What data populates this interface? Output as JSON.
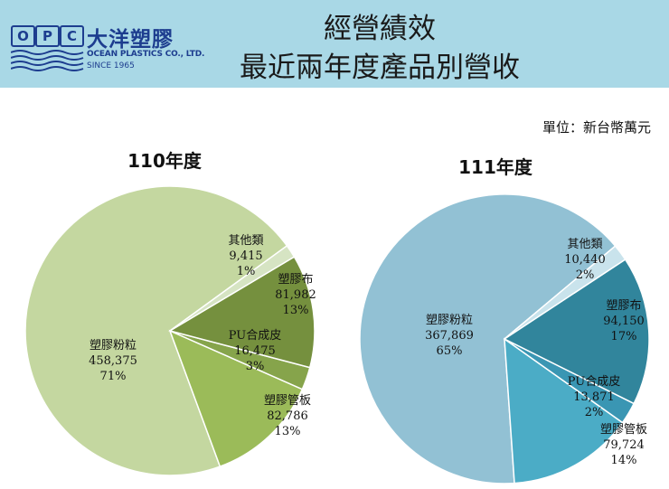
{
  "header": {
    "title_line1": "經營績效",
    "title_line2": "最近兩年度產品別營收",
    "logo": {
      "letters": [
        "O",
        "P",
        "C"
      ],
      "name_cn": "大洋塑膠",
      "name_en": "OCEAN PLASTICS CO., LTD.",
      "since": "SINCE 1965"
    }
  },
  "unit_label": "單位：新台幣萬元",
  "colors": {
    "header_bg": "#a9d8e6",
    "logo_blue": "#1d3d8f"
  },
  "chart_data": [
    {
      "type": "pie",
      "title": "110年度",
      "slices": [
        {
          "name": "其他類",
          "value_label": "9,415",
          "pct_label": "1%",
          "value": 9415,
          "color": "#d6e4c3"
        },
        {
          "name": "塑膠布",
          "value_label": "81,982",
          "pct_label": "13%",
          "value": 81982,
          "color": "#75903e"
        },
        {
          "name": "PU合成皮",
          "value_label": "16,475",
          "pct_label": "3%",
          "value": 16475,
          "color": "#86a44b"
        },
        {
          "name": "塑膠管板",
          "value_label": "82,786",
          "pct_label": "13%",
          "value": 82786,
          "color": "#9bbb59"
        },
        {
          "name": "塑膠粉粒",
          "value_label": "458,375",
          "pct_label": "71%",
          "value": 458375,
          "color": "#c4d7a0"
        }
      ]
    },
    {
      "type": "pie",
      "title": "111年度",
      "slices": [
        {
          "name": "其他類",
          "value_label": "10,440",
          "pct_label": "2%",
          "value": 10440,
          "color": "#c9e3ec"
        },
        {
          "name": "塑膠布",
          "value_label": "94,150",
          "pct_label": "17%",
          "value": 94150,
          "color": "#31859c"
        },
        {
          "name": "PU合成皮",
          "value_label": "13,871",
          "pct_label": "2%",
          "value": 13871,
          "color": "#3a96b3"
        },
        {
          "name": "塑膠管板",
          "value_label": "79,724",
          "pct_label": "14%",
          "value": 79724,
          "color": "#4bacc6"
        },
        {
          "name": "塑膠粉粒",
          "value_label": "367,869",
          "pct_label": "65%",
          "value": 367869,
          "color": "#92c1d4"
        }
      ]
    }
  ]
}
